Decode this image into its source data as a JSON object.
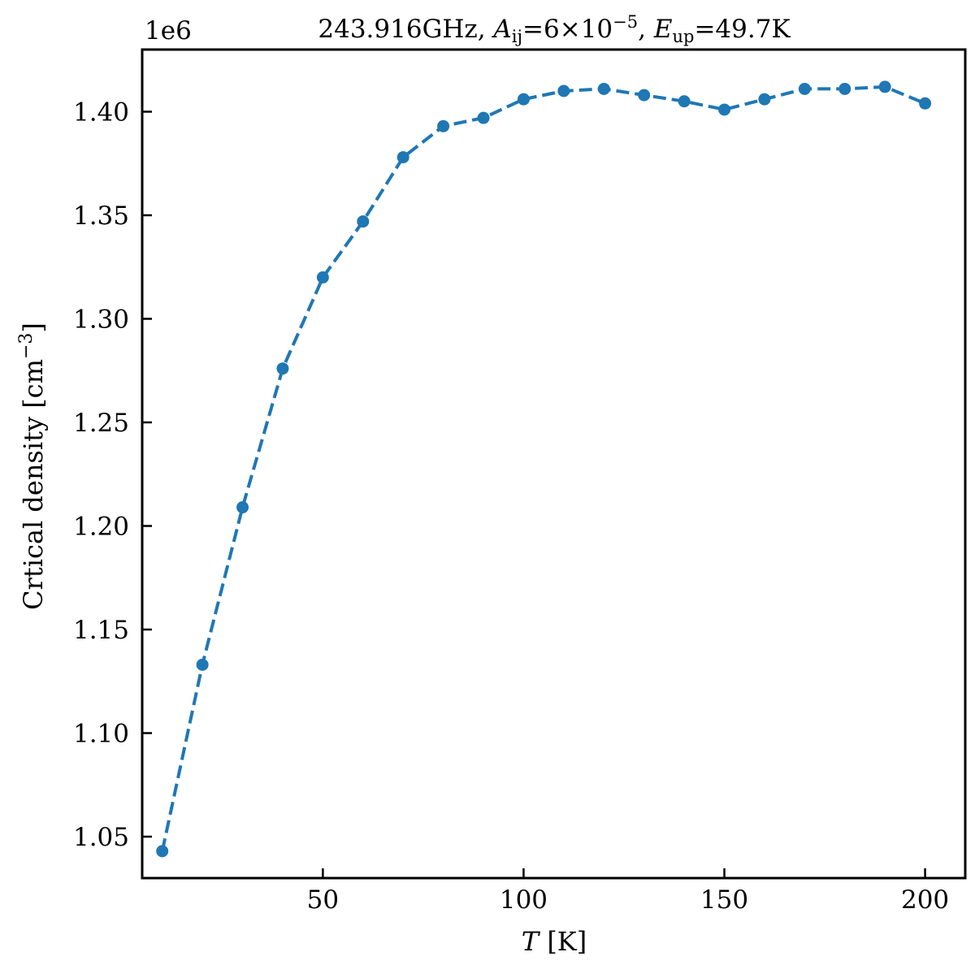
{
  "chart_data": {
    "type": "line",
    "title": {
      "freq": "243.916GHz, ",
      "a_sym": "A",
      "a_sub": "ij",
      "a_val": "=6×10",
      "a_exp": "−5",
      "sep": ", ",
      "e_sym": "E",
      "e_sub": "up",
      "e_val": "=49.7K"
    },
    "xlabel": {
      "var": "T",
      "unit": " [K]"
    },
    "ylabel": {
      "text": "Crtical density [cm",
      "exp": "−3",
      "close": "]"
    },
    "y_offset_text": "1e6",
    "xlim": [
      5,
      210
    ],
    "ylim": [
      1.03,
      1.43
    ],
    "xticks": [
      50,
      100,
      150,
      200
    ],
    "xtick_labels": [
      "50",
      "100",
      "150",
      "200"
    ],
    "yticks": [
      1.05,
      1.1,
      1.15,
      1.2,
      1.25,
      1.3,
      1.35,
      1.4
    ],
    "ytick_labels": [
      "1.05",
      "1.10",
      "1.15",
      "1.20",
      "1.25",
      "1.30",
      "1.35",
      "1.40"
    ],
    "series": [
      {
        "x": [
          10,
          20,
          30,
          40,
          50,
          60,
          70,
          80,
          90,
          100,
          110,
          120,
          130,
          140,
          150,
          160,
          170,
          180,
          190,
          200
        ],
        "y": [
          1.043,
          1.133,
          1.209,
          1.276,
          1.32,
          1.347,
          1.378,
          1.393,
          1.397,
          1.406,
          1.41,
          1.411,
          1.408,
          1.405,
          1.401,
          1.406,
          1.411,
          1.411,
          1.412,
          1.404
        ],
        "color": "#1f77b4",
        "linestyle": "dashed",
        "marker": "circle"
      }
    ],
    "grid": false
  }
}
